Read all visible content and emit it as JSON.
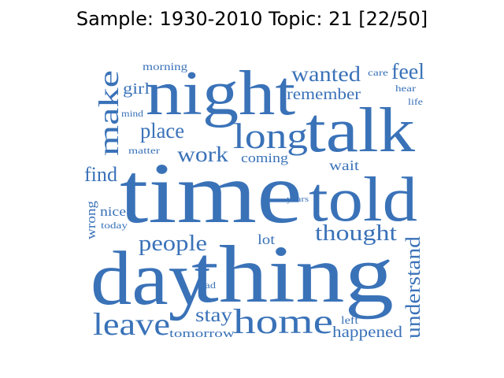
{
  "title": "Sample: 1930-2010 Topic: 21 [22/50]",
  "word_color": "#3a72b8",
  "words": {
    "time": "time",
    "thing": "thing",
    "day": "day",
    "night": "night",
    "talk": "talk",
    "told": "told",
    "long": "long",
    "home": "home",
    "leave": "leave",
    "make": "make",
    "people": "people",
    "thought": "thought",
    "wanted": "wanted",
    "understand": "understand",
    "feel": "feel",
    "place": "place",
    "work": "work",
    "find": "find",
    "remember": "remember",
    "stay": "stay",
    "happened": "happened",
    "girl": "girl",
    "wait": "wait",
    "coming": "coming",
    "morning": "morning",
    "nice": "nice",
    "wrong": "wrong",
    "lot": "lot",
    "tomorrow": "tomorrow",
    "mind": "mind",
    "matter": "matter",
    "today": "today",
    "years": "years",
    "bad": "bad",
    "left": "left",
    "care": "care",
    "hear": "hear",
    "life": "life"
  }
}
